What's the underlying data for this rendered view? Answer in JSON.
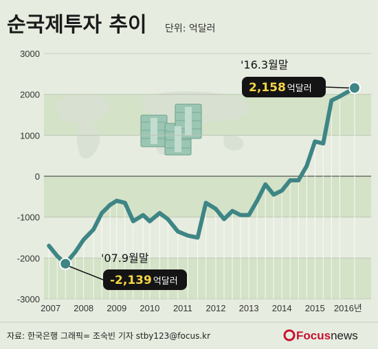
{
  "header": {
    "title": "순국제투자 추이",
    "unit": "단위: 억달러"
  },
  "source": "자료: 한국은행   그래픽= 조숙빈 기자 stby123@focus.kr",
  "logo": {
    "brand": "Focus",
    "suffix": "news",
    "brand_color": "#c8102e"
  },
  "colors": {
    "line": "#3e8585",
    "band": "#d4e2c8",
    "callout_bg": "#141414",
    "callout_value": "#f6d645",
    "background": "#e6ecdf"
  },
  "chart_data": {
    "type": "line",
    "title": "순국제투자 추이",
    "ylabel": "",
    "xlabel": "",
    "ylim": [
      -3000,
      3000
    ],
    "xlim": [
      2006.8,
      2016.7
    ],
    "yticks": [
      3000,
      2000,
      1000,
      0,
      -1000,
      -2000,
      -3000
    ],
    "ytick_labels": [
      "3000",
      "2000",
      "1000",
      "0",
      "-1000",
      "-2000",
      "-3000"
    ],
    "xticks": [
      2007,
      2008,
      2009,
      2010,
      2011,
      2012,
      2013,
      2014,
      2015,
      2016
    ],
    "xtick_labels": [
      "2007",
      "2008",
      "2009",
      "2010",
      "2011",
      "2012",
      "2013",
      "2014",
      "2015",
      "2016년"
    ],
    "series": [
      {
        "x": [
          2006.95,
          2007.2,
          2007.45,
          2007.75,
          2008.0,
          2008.3,
          2008.55,
          2008.8,
          2009.0,
          2009.25,
          2009.5,
          2009.8,
          2010.0,
          2010.3,
          2010.55,
          2010.85,
          2011.15,
          2011.45,
          2011.7,
          2012.0,
          2012.25,
          2012.5,
          2012.75,
          2013.0,
          2013.25,
          2013.5,
          2013.75,
          2014.0,
          2014.25,
          2014.5,
          2014.75,
          2015.0,
          2015.25,
          2015.5,
          2015.75,
          2016.2
        ],
        "y": [
          -1700,
          -1950,
          -2139,
          -1850,
          -1550,
          -1300,
          -900,
          -700,
          -600,
          -650,
          -1100,
          -950,
          -1100,
          -900,
          -1050,
          -1350,
          -1450,
          -1500,
          -650,
          -800,
          -1050,
          -850,
          -950,
          -950,
          -600,
          -200,
          -450,
          -350,
          -100,
          -100,
          250,
          850,
          800,
          1850,
          1950,
          2158
        ]
      }
    ],
    "annotations": [
      {
        "label": "'16.3월말",
        "value": "2,158",
        "unit": "억달러",
        "x": 2016.2,
        "y": 2158
      },
      {
        "label": "'07.9월말",
        "value": "-2,139",
        "unit": "억달러",
        "x": 2007.45,
        "y": -2139
      }
    ]
  }
}
